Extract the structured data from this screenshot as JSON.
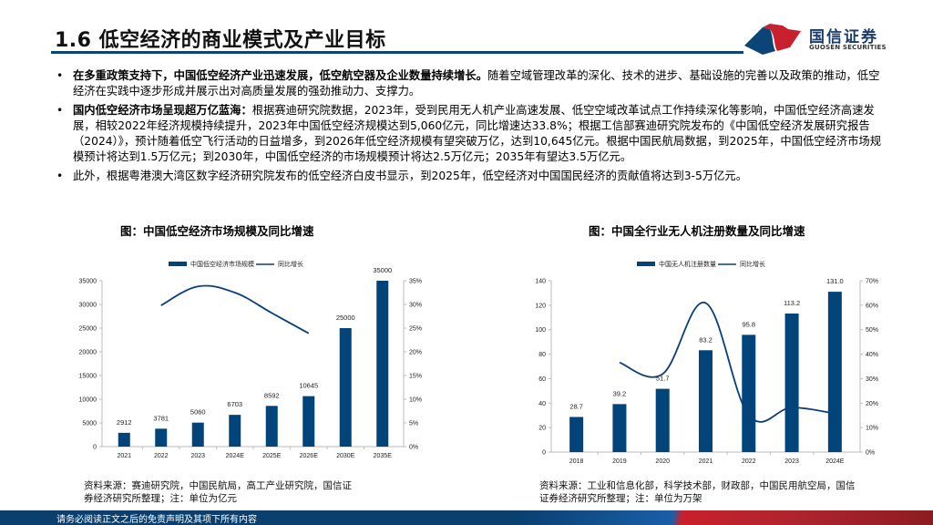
{
  "header": {
    "title": "1.6 低空经济的商业模式及产业目标",
    "logo_cn": "国信证券",
    "logo_en": "GUOSEN SECURITIES"
  },
  "bullets": [
    {
      "bold": "在多重政策支持下，中国低空经济产业迅速发展，低空航空器及企业数量持续增长。",
      "text": "随着空域管理改革的深化、技术的进步、基础设施的完善以及政策的推动，低空经济在实践中逐步形成并展示出对高质量发展的强劲推动力、支撑力。"
    },
    {
      "bold": "国内低空经济市场呈现超万亿蓝海：",
      "text": "根据赛迪研究院数据，2023年，受到民用无人机产业高速发展、低空空域改革试点工作持续深化等影响，中国低空经济高速发展，相较2022年经济规模持续提升，2023年中国低空经济规模达到5,060亿元，同比增速达33.8%；根据工信部赛迪研究院发布的《中国低空经济发展研究报告（2024）》，预计随着低空飞行活动的日益增多，到2026年低空经济规模有望突破万亿，达到10,645亿元。根据中国民航局数据，到2025年，中国低空经济市场规模预计将达到1.5万亿元；到2030年，中国低空经济的市场规模预计将达2.5万亿元；2035年有望达3.5万亿元。"
    },
    {
      "bold": "",
      "text": "此外，根据粤港澳大湾区数字经济研究院发布的低空经济白皮书显示，到2025年，低空经济对中国国民经济的贡献值将达到3-5万亿元。"
    }
  ],
  "charts": {
    "left": {
      "title": "图：中国低空经济市场规模及同比增速",
      "source": "资料来源：赛迪研究院，中国民航局，高工产业研究院，国信证券经济研究所整理；注：单位为亿元",
      "source_line1": "资料来源：赛迪研究院，中国民航局，高工产业研究院，国信证",
      "source_line2": "券经济研究所整理；注：单位为亿元"
    },
    "right": {
      "title": "图：中国全行业无人机注册数量及同比增速",
      "source": "资料来源：工业和信息化部，科学技术部，财政部，中国民用航空局，国信证券经济研究所整理；注：单位为万架",
      "source_line1": "资料来源：工业和信息化部，科学技术部，财政部，中国民用航空局，国信",
      "source_line2": "证券经济研究所整理；注：单位为万架"
    }
  },
  "footer": {
    "disclaimer": "请务必阅读正文之后的免责声明及其项下所有内容"
  },
  "colors": {
    "brand_blue": "#0b4476",
    "bar_blue": "#00447a",
    "brand_red": "#c8202c"
  },
  "chart_data": [
    {
      "type": "bar",
      "title": "图：中国低空经济市场规模及同比增速",
      "categories": [
        "2021",
        "2022",
        "2023",
        "2024E",
        "2025E",
        "2026E",
        "2030E",
        "2035E"
      ],
      "series": [
        {
          "name": "中国低空经济市场规模",
          "type": "bar",
          "axis": "left",
          "values": [
            2912,
            3781,
            5060,
            6703,
            8592,
            10645,
            25000,
            35000
          ]
        },
        {
          "name": "同比增长",
          "type": "line",
          "axis": "right",
          "values": [
            null,
            29.8,
            33.8,
            32.5,
            28.2,
            23.9,
            null,
            null
          ]
        }
      ],
      "y_left": {
        "min": 0,
        "max": 35000,
        "ticks": [
          0,
          5000,
          10000,
          15000,
          20000,
          25000,
          30000,
          35000
        ]
      },
      "y_right": {
        "min": 0,
        "max": 35,
        "ticks": [
          "0%",
          "5%",
          "10%",
          "15%",
          "20%",
          "25%",
          "30%",
          "35%"
        ]
      },
      "legend": [
        "中国低空经济市场规模",
        "同比增长"
      ],
      "legend_position": "top",
      "grid": false,
      "xlabel": "",
      "ylabel": ""
    },
    {
      "type": "bar",
      "title": "图：中国全行业无人机注册数量及同比增速",
      "categories": [
        "2018",
        "2019",
        "2020",
        "2021",
        "2022",
        "2023",
        "2024E"
      ],
      "series": [
        {
          "name": "中国无人机注册数量",
          "type": "bar",
          "axis": "left",
          "values": [
            28.7,
            39.2,
            51.7,
            83.2,
            95.8,
            113.2,
            131.0
          ],
          "labels": [
            "28.7",
            "39.2",
            "51.7",
            "83.2",
            "95.8",
            "113.2",
            "131.0"
          ]
        },
        {
          "name": "同比增长",
          "type": "line",
          "axis": "right",
          "values": [
            null,
            36.6,
            31.9,
            60.9,
            15.1,
            18.2,
            15.7
          ]
        }
      ],
      "y_left": {
        "min": 0,
        "max": 140,
        "ticks": [
          0,
          20,
          40,
          60,
          80,
          100,
          120,
          140
        ]
      },
      "y_right": {
        "min": 0,
        "max": 70,
        "ticks": [
          "0%",
          "10%",
          "20%",
          "30%",
          "40%",
          "50%",
          "60%",
          "70%"
        ]
      },
      "legend": [
        "中国无人机注册数量",
        "同比增长"
      ],
      "legend_position": "top",
      "grid": false,
      "xlabel": "",
      "ylabel": ""
    }
  ]
}
